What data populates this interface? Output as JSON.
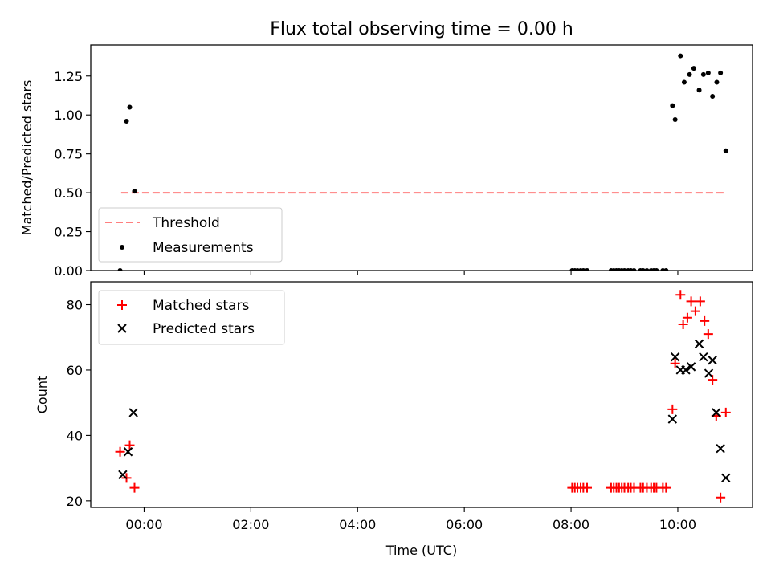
{
  "title": "Flux total observing time = 0.00 h",
  "colors": {
    "threshold": "#ff7f7f",
    "matched": "#ff0000",
    "predicted": "#000000",
    "measurements": "#000000"
  },
  "chart_data": [
    {
      "type": "scatter",
      "ylabel": "Matched/Predicted stars",
      "ylim": [
        0,
        1.45
      ],
      "xlim": [
        -1.0,
        11.4
      ],
      "yticks": [
        0.0,
        0.25,
        0.5,
        0.75,
        1.0,
        1.25
      ],
      "ytick_labels": [
        "0.00",
        "0.25",
        "0.50",
        "0.75",
        "1.00",
        "1.25"
      ],
      "legend": {
        "position": "lower-left",
        "entries": [
          "Threshold",
          "Measurements"
        ]
      },
      "threshold": {
        "name": "Threshold",
        "y": 0.5,
        "x": [
          -0.43,
          10.9
        ]
      },
      "series": [
        {
          "name": "Measurements",
          "x": [
            -0.45,
            -0.33,
            -0.27,
            -0.18,
            8.02,
            8.07,
            8.12,
            8.18,
            8.23,
            8.3,
            8.75,
            8.8,
            8.85,
            8.9,
            8.95,
            9.0,
            9.07,
            9.12,
            9.18,
            9.3,
            9.35,
            9.42,
            9.5,
            9.55,
            9.6,
            9.72,
            9.78,
            9.9,
            9.95,
            10.05,
            10.12,
            10.22,
            10.3,
            10.4,
            10.48,
            10.57,
            10.65,
            10.73,
            10.8,
            10.9
          ],
          "y": [
            0.0,
            0.96,
            1.05,
            0.51,
            0.0,
            0.0,
            0.0,
            0.0,
            0.0,
            0.0,
            0.0,
            0.0,
            0.0,
            0.0,
            0.0,
            0.0,
            0.0,
            0.0,
            0.0,
            0.0,
            0.0,
            0.0,
            0.0,
            0.0,
            0.0,
            0.0,
            0.0,
            1.06,
            0.97,
            1.38,
            1.21,
            1.26,
            1.3,
            1.16,
            1.26,
            1.27,
            1.12,
            1.21,
            1.27,
            0.77
          ]
        }
      ]
    },
    {
      "type": "scatter",
      "ylabel": "Count",
      "xlabel": "Time (UTC)",
      "ylim": [
        18,
        87
      ],
      "xlim": [
        -1.0,
        11.4
      ],
      "yticks": [
        20,
        40,
        60,
        80
      ],
      "ytick_labels": [
        "20",
        "40",
        "60",
        "80"
      ],
      "xticks": [
        0,
        2,
        4,
        6,
        8,
        10
      ],
      "xtick_labels": [
        "00:00",
        "02:00",
        "04:00",
        "06:00",
        "08:00",
        "10:00"
      ],
      "legend": {
        "position": "upper-left",
        "entries": [
          "Matched stars",
          "Predicted stars"
        ]
      },
      "series": [
        {
          "name": "Matched stars",
          "marker": "+",
          "x": [
            -0.45,
            -0.33,
            -0.27,
            -0.18,
            8.02,
            8.07,
            8.12,
            8.18,
            8.23,
            8.3,
            8.75,
            8.8,
            8.85,
            8.9,
            8.95,
            9.0,
            9.07,
            9.12,
            9.18,
            9.3,
            9.35,
            9.42,
            9.5,
            9.55,
            9.6,
            9.72,
            9.78,
            9.9,
            9.95,
            10.05,
            10.1,
            10.18,
            10.25,
            10.33,
            10.42,
            10.5,
            10.57,
            10.65,
            10.72,
            10.8,
            10.9
          ],
          "y": [
            35,
            27,
            37,
            24,
            24,
            24,
            24,
            24,
            24,
            24,
            24,
            24,
            24,
            24,
            24,
            24,
            24,
            24,
            24,
            24,
            24,
            24,
            24,
            24,
            24,
            24,
            24,
            48,
            62,
            83,
            74,
            76,
            81,
            78,
            81,
            75,
            71,
            57,
            46,
            21,
            47
          ]
        },
        {
          "name": "Predicted stars",
          "marker": "x",
          "x": [
            -0.4,
            -0.3,
            -0.2,
            9.9,
            9.95,
            10.05,
            10.15,
            10.25,
            10.4,
            10.48,
            10.58,
            10.65,
            10.72,
            10.8,
            10.9
          ],
          "y": [
            28,
            35,
            47,
            45,
            64,
            60,
            60,
            61,
            68,
            64,
            59,
            63,
            47,
            36,
            27
          ]
        }
      ]
    }
  ]
}
